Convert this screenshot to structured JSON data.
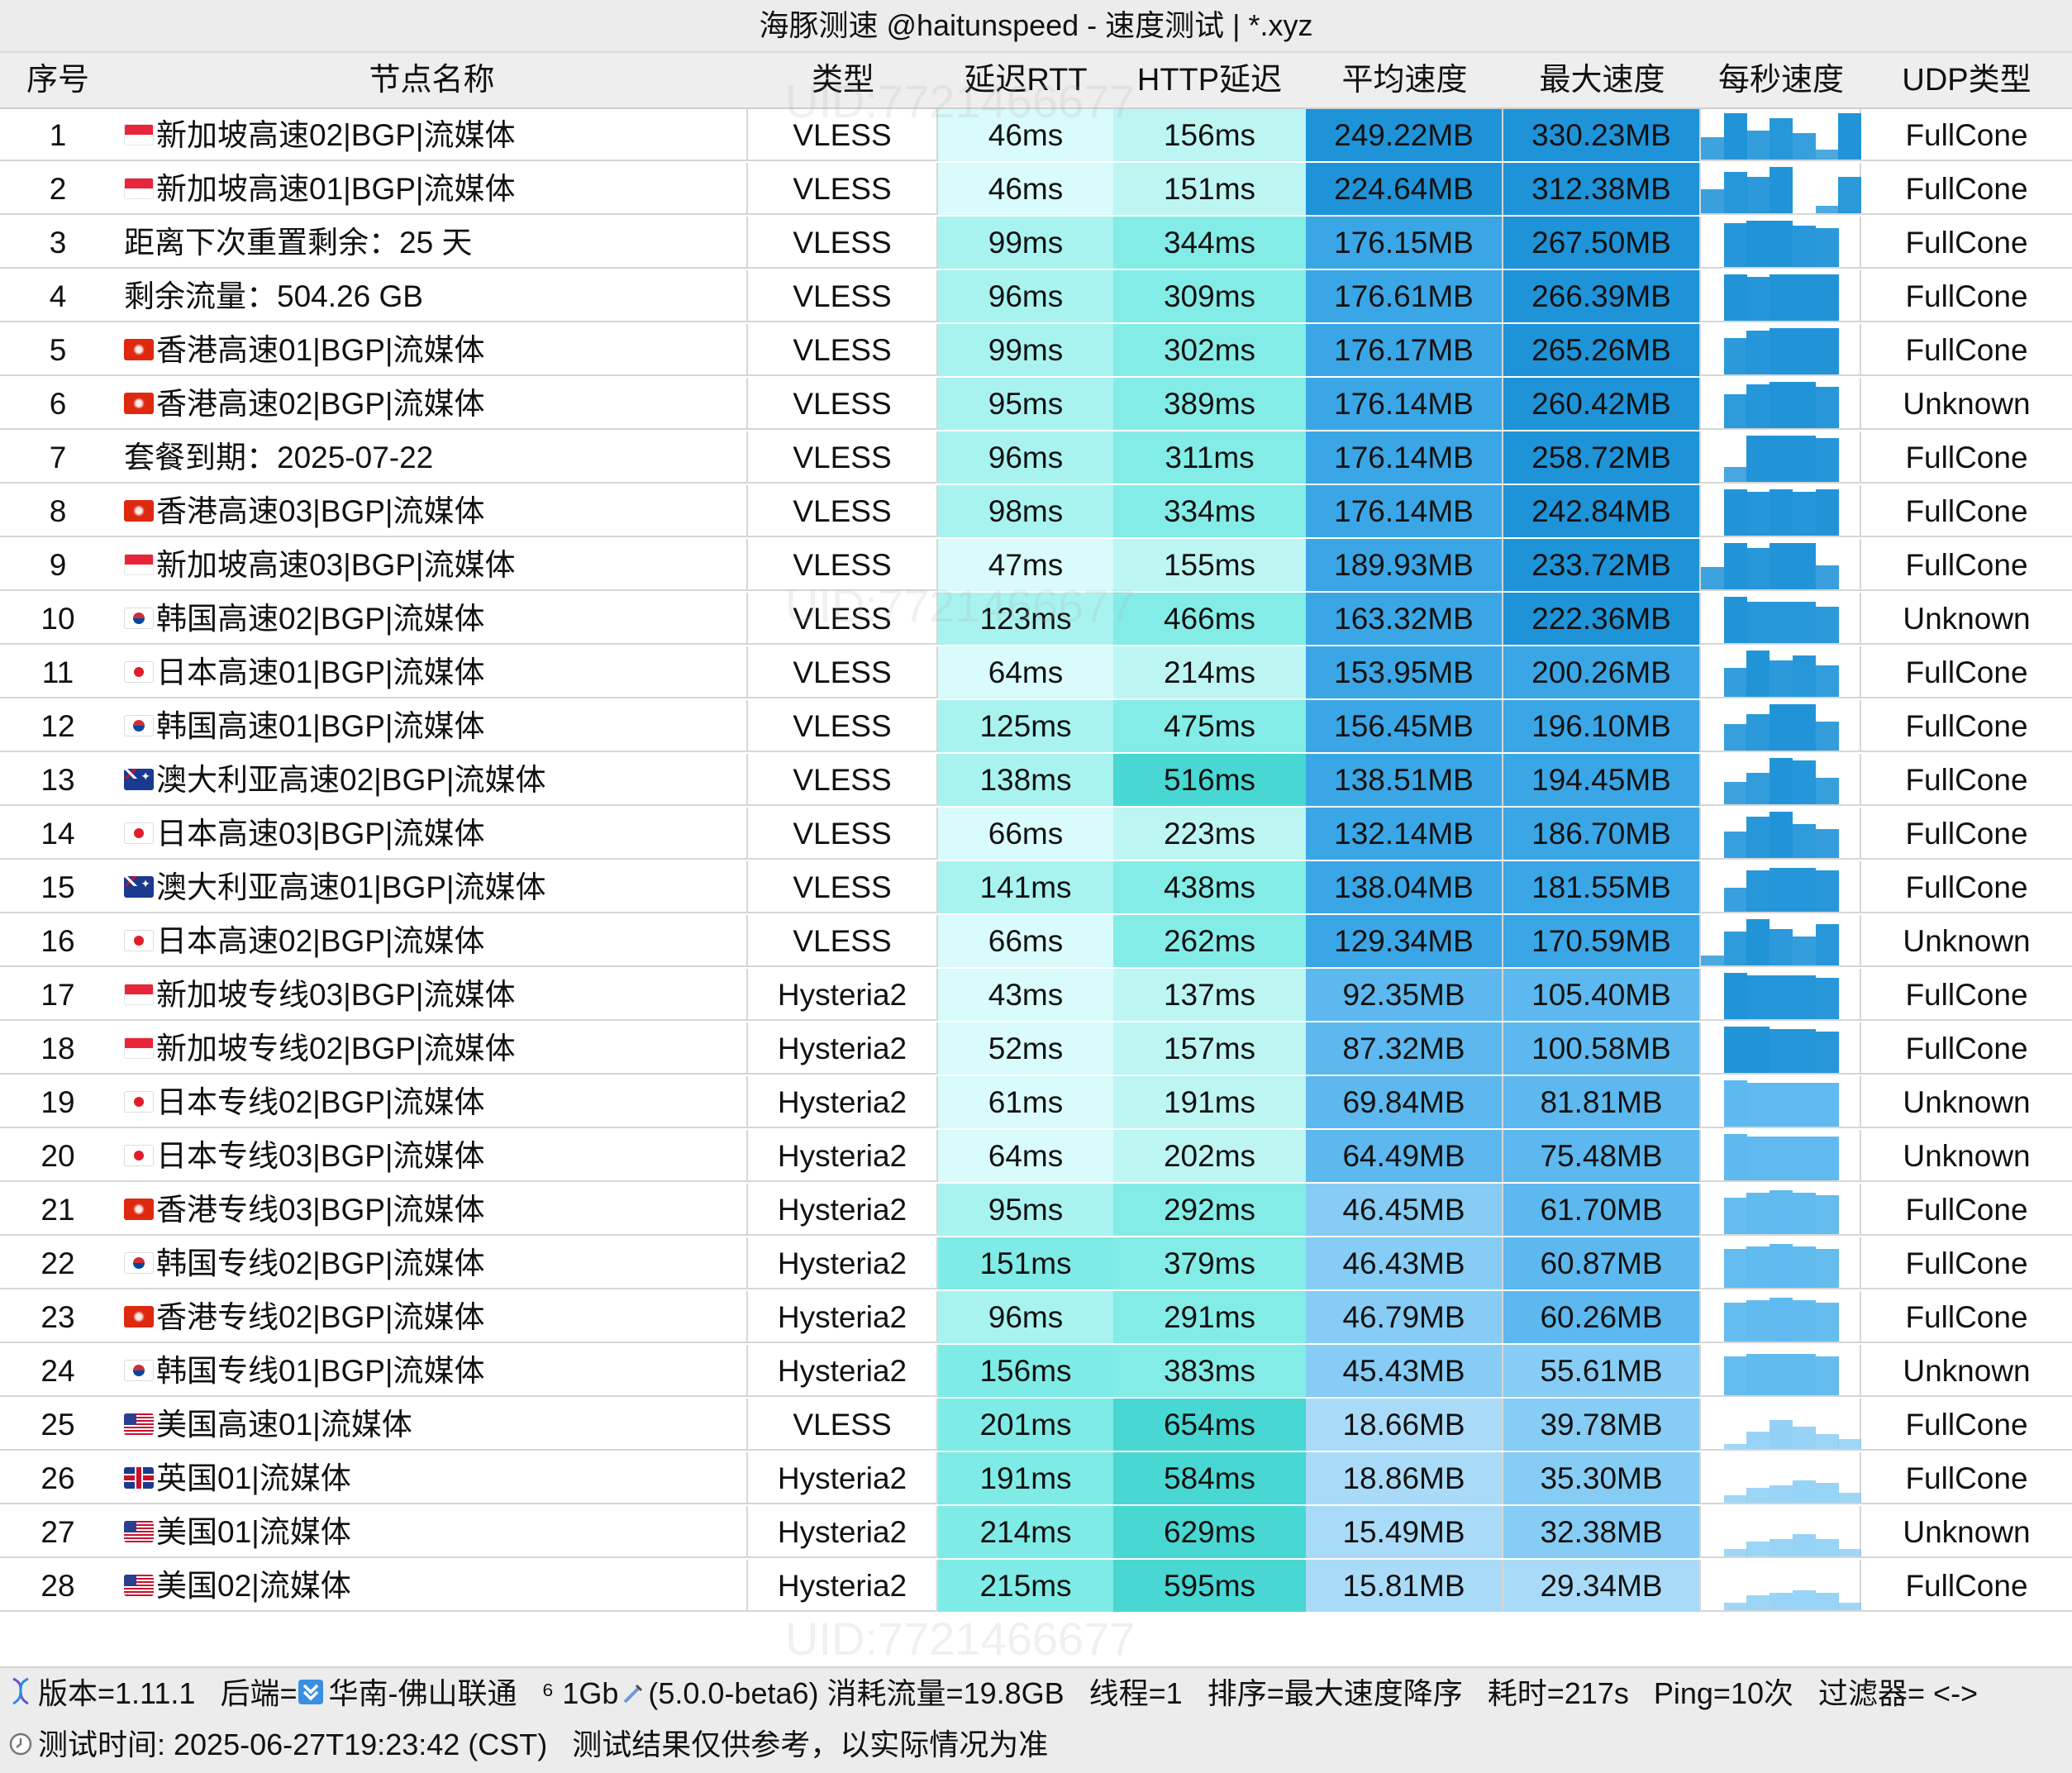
{
  "title": "海豚测速 @haitunspeed - 速度测试 | *.xyz",
  "headers": [
    "序号",
    "节点名称",
    "类型",
    "延迟RTT",
    "HTTP延迟",
    "平均速度",
    "最大速度",
    "每秒速度",
    "UDP类型"
  ],
  "rows": [
    {
      "idx": "1",
      "flag": "sg",
      "name": "新加坡高速02|BGP|流媒体",
      "type": "VLESS",
      "rtt": "46ms",
      "http": "156ms",
      "avg": "249.22MB",
      "max": "330.23MB",
      "udp": "FullCone",
      "spark": [
        0.45,
        0.95,
        0.6,
        0.85,
        0.55,
        0.2,
        0.95
      ]
    },
    {
      "idx": "2",
      "flag": "sg",
      "name": "新加坡高速01|BGP|流媒体",
      "type": "VLESS",
      "rtt": "46ms",
      "http": "151ms",
      "avg": "224.64MB",
      "max": "312.38MB",
      "udp": "FullCone",
      "spark": [
        0.5,
        0.85,
        0.75,
        0.95,
        0.0,
        0.15,
        0.75
      ]
    },
    {
      "idx": "3",
      "flag": "",
      "name": "距离下次重置剩余：25 天",
      "type": "VLESS",
      "rtt": "99ms",
      "http": "344ms",
      "avg": "176.15MB",
      "max": "267.50MB",
      "udp": "FullCone",
      "spark": [
        0.0,
        0.9,
        0.95,
        0.95,
        0.85,
        0.8,
        0.0
      ]
    },
    {
      "idx": "4",
      "flag": "",
      "name": "剩余流量：504.26 GB",
      "type": "VLESS",
      "rtt": "96ms",
      "http": "309ms",
      "avg": "176.61MB",
      "max": "266.39MB",
      "udp": "FullCone",
      "spark": [
        0.0,
        0.95,
        0.9,
        0.95,
        0.95,
        0.95,
        0.0
      ]
    },
    {
      "idx": "5",
      "flag": "hk",
      "name": "香港高速01|BGP|流媒体",
      "type": "VLESS",
      "rtt": "99ms",
      "http": "302ms",
      "avg": "176.17MB",
      "max": "265.26MB",
      "udp": "FullCone",
      "spark": [
        0.0,
        0.75,
        0.9,
        0.95,
        0.95,
        0.95,
        0.0
      ]
    },
    {
      "idx": "6",
      "flag": "hk",
      "name": "香港高速02|BGP|流媒体",
      "type": "VLESS",
      "rtt": "95ms",
      "http": "389ms",
      "avg": "176.14MB",
      "max": "260.42MB",
      "udp": "Unknown",
      "spark": [
        0.0,
        0.7,
        0.9,
        0.95,
        0.95,
        0.85,
        0.0
      ]
    },
    {
      "idx": "7",
      "flag": "",
      "name": "套餐到期：2025-07-22",
      "type": "VLESS",
      "rtt": "96ms",
      "http": "311ms",
      "avg": "176.14MB",
      "max": "258.72MB",
      "udp": "FullCone",
      "spark": [
        0.0,
        0.3,
        0.95,
        0.95,
        0.95,
        0.9,
        0.0
      ]
    },
    {
      "idx": "8",
      "flag": "hk",
      "name": "香港高速03|BGP|流媒体",
      "type": "VLESS",
      "rtt": "98ms",
      "http": "334ms",
      "avg": "176.14MB",
      "max": "242.84MB",
      "udp": "FullCone",
      "spark": [
        0.0,
        0.95,
        0.9,
        0.95,
        0.9,
        0.95,
        0.0
      ]
    },
    {
      "idx": "9",
      "flag": "sg",
      "name": "新加坡高速03|BGP|流媒体",
      "type": "VLESS",
      "rtt": "47ms",
      "http": "155ms",
      "avg": "189.93MB",
      "max": "233.72MB",
      "udp": "FullCone",
      "spark": [
        0.45,
        0.95,
        0.85,
        0.95,
        0.95,
        0.5,
        0.0
      ]
    },
    {
      "idx": "10",
      "flag": "kr",
      "name": "韩国高速02|BGP|流媒体",
      "type": "VLESS",
      "rtt": "123ms",
      "http": "466ms",
      "avg": "163.32MB",
      "max": "222.36MB",
      "udp": "Unknown",
      "spark": [
        0.0,
        0.95,
        0.85,
        0.85,
        0.85,
        0.75,
        0.0
      ]
    },
    {
      "idx": "11",
      "flag": "jp",
      "name": "日本高速01|BGP|流媒体",
      "type": "VLESS",
      "rtt": "64ms",
      "http": "214ms",
      "avg": "153.95MB",
      "max": "200.26MB",
      "udp": "FullCone",
      "spark": [
        0.0,
        0.6,
        0.95,
        0.75,
        0.85,
        0.65,
        0.0
      ]
    },
    {
      "idx": "12",
      "flag": "kr",
      "name": "韩国高速01|BGP|流媒体",
      "type": "VLESS",
      "rtt": "125ms",
      "http": "475ms",
      "avg": "156.45MB",
      "max": "196.10MB",
      "udp": "FullCone",
      "spark": [
        0.0,
        0.55,
        0.75,
        0.95,
        0.95,
        0.6,
        0.0
      ]
    },
    {
      "idx": "13",
      "flag": "au",
      "name": "澳大利亚高速02|BGP|流媒体",
      "type": "VLESS",
      "rtt": "138ms",
      "http": "516ms",
      "avg": "138.51MB",
      "max": "194.45MB",
      "udp": "FullCone",
      "spark": [
        0.0,
        0.45,
        0.65,
        0.95,
        0.9,
        0.55,
        0.0
      ]
    },
    {
      "idx": "14",
      "flag": "jp",
      "name": "日本高速03|BGP|流媒体",
      "type": "VLESS",
      "rtt": "66ms",
      "http": "223ms",
      "avg": "132.14MB",
      "max": "186.70MB",
      "udp": "FullCone",
      "spark": [
        0.0,
        0.55,
        0.85,
        0.95,
        0.7,
        0.6,
        0.0
      ]
    },
    {
      "idx": "15",
      "flag": "au",
      "name": "澳大利亚高速01|BGP|流媒体",
      "type": "VLESS",
      "rtt": "141ms",
      "http": "438ms",
      "avg": "138.04MB",
      "max": "181.55MB",
      "udp": "FullCone",
      "spark": [
        0.0,
        0.5,
        0.85,
        0.9,
        0.9,
        0.85,
        0.0
      ]
    },
    {
      "idx": "16",
      "flag": "jp",
      "name": "日本高速02|BGP|流媒体",
      "type": "VLESS",
      "rtt": "66ms",
      "http": "262ms",
      "avg": "129.34MB",
      "max": "170.59MB",
      "udp": "Unknown",
      "spark": [
        0.2,
        0.7,
        0.95,
        0.75,
        0.6,
        0.85,
        0.0
      ]
    },
    {
      "idx": "17",
      "flag": "sg",
      "name": "新加坡专线03|BGP|流媒体",
      "type": "Hysteria2",
      "rtt": "43ms",
      "http": "137ms",
      "avg": "92.35MB",
      "max": "105.40MB",
      "udp": "FullCone",
      "spark": [
        0.0,
        0.95,
        0.9,
        0.9,
        0.9,
        0.85,
        0.0
      ]
    },
    {
      "idx": "18",
      "flag": "sg",
      "name": "新加坡专线02|BGP|流媒体",
      "type": "Hysteria2",
      "rtt": "52ms",
      "http": "157ms",
      "avg": "87.32MB",
      "max": "100.58MB",
      "udp": "FullCone",
      "spark": [
        0.0,
        0.95,
        0.95,
        0.9,
        0.9,
        0.85,
        0.0
      ]
    },
    {
      "idx": "19",
      "flag": "jp",
      "name": "日本专线02|BGP|流媒体",
      "type": "Hysteria2",
      "rtt": "61ms",
      "http": "191ms",
      "avg": "69.84MB",
      "max": "81.81MB",
      "udp": "Unknown",
      "spark": [
        0.0,
        0.95,
        0.9,
        0.9,
        0.9,
        0.9,
        0.0
      ]
    },
    {
      "idx": "20",
      "flag": "jp",
      "name": "日本专线03|BGP|流媒体",
      "type": "Hysteria2",
      "rtt": "64ms",
      "http": "202ms",
      "avg": "64.49MB",
      "max": "75.48MB",
      "udp": "Unknown",
      "spark": [
        0.0,
        0.95,
        0.9,
        0.9,
        0.9,
        0.9,
        0.0
      ]
    },
    {
      "idx": "21",
      "flag": "hk",
      "name": "香港专线03|BGP|流媒体",
      "type": "Hysteria2",
      "rtt": "95ms",
      "http": "292ms",
      "avg": "46.45MB",
      "max": "61.70MB",
      "udp": "FullCone",
      "spark": [
        0.0,
        0.75,
        0.85,
        0.9,
        0.85,
        0.8,
        0.0
      ]
    },
    {
      "idx": "22",
      "flag": "kr",
      "name": "韩国专线02|BGP|流媒体",
      "type": "Hysteria2",
      "rtt": "151ms",
      "http": "379ms",
      "avg": "46.43MB",
      "max": "60.87MB",
      "udp": "FullCone",
      "spark": [
        0.0,
        0.8,
        0.85,
        0.9,
        0.85,
        0.8,
        0.0
      ]
    },
    {
      "idx": "23",
      "flag": "hk",
      "name": "香港专线02|BGP|流媒体",
      "type": "Hysteria2",
      "rtt": "96ms",
      "http": "291ms",
      "avg": "46.79MB",
      "max": "60.26MB",
      "udp": "FullCone",
      "spark": [
        0.0,
        0.8,
        0.85,
        0.9,
        0.85,
        0.8,
        0.0
      ]
    },
    {
      "idx": "24",
      "flag": "kr",
      "name": "韩国专线01|BGP|流媒体",
      "type": "Hysteria2",
      "rtt": "156ms",
      "http": "383ms",
      "avg": "45.43MB",
      "max": "55.61MB",
      "udp": "Unknown",
      "spark": [
        0.0,
        0.8,
        0.85,
        0.85,
        0.85,
        0.8,
        0.0
      ]
    },
    {
      "idx": "25",
      "flag": "us",
      "name": "美国高速01|流媒体",
      "type": "VLESS",
      "rtt": "201ms",
      "http": "654ms",
      "avg": "18.66MB",
      "max": "39.78MB",
      "udp": "FullCone",
      "spark": [
        0.0,
        0.1,
        0.35,
        0.6,
        0.45,
        0.3,
        0.2
      ]
    },
    {
      "idx": "26",
      "flag": "gb",
      "name": "英国01|流媒体",
      "type": "Hysteria2",
      "rtt": "191ms",
      "http": "584ms",
      "avg": "18.86MB",
      "max": "35.30MB",
      "udp": "FullCone",
      "spark": [
        0.0,
        0.15,
        0.3,
        0.35,
        0.45,
        0.4,
        0.2
      ]
    },
    {
      "idx": "27",
      "flag": "us",
      "name": "美国01|流媒体",
      "type": "Hysteria2",
      "rtt": "214ms",
      "http": "629ms",
      "avg": "15.49MB",
      "max": "32.38MB",
      "udp": "Unknown",
      "spark": [
        0.0,
        0.15,
        0.3,
        0.35,
        0.45,
        0.35,
        0.15
      ]
    },
    {
      "idx": "28",
      "flag": "us",
      "name": "美国02|流媒体",
      "type": "Hysteria2",
      "rtt": "215ms",
      "http": "595ms",
      "avg": "15.81MB",
      "max": "29.34MB",
      "udp": "FullCone",
      "spark": [
        0.0,
        0.15,
        0.3,
        0.35,
        0.4,
        0.35,
        0.15
      ]
    }
  ],
  "footer": {
    "line1_version": "版本=1.11.1",
    "line1_backend_label": "后端=",
    "line1_backend_value": "华南-佛山联通",
    "line1_bandwidth": "⁶ 1Gb",
    "line1_core": "(5.0.0-beta6)",
    "line1_traffic": "消耗流量=19.8GB",
    "line1_threads": "线程=1",
    "line1_sort": "排序=最大速度降序",
    "line1_time": "耗时=217s",
    "line1_ping": "Ping=10次",
    "line1_filter": "过滤器= <->",
    "line2_time": "测试时间: 2025-06-27T19:23:42 (CST)",
    "line2_note": "测试结果仅供参考，以实际情况为准"
  },
  "watermark": "UID:7721466677",
  "colors": {
    "rtt_light": "#d9fbfb",
    "rtt_mid": "#a8f3f0",
    "rtt_dark": "#7eebe6",
    "http_light": "#bdf5f3",
    "http_mid": "#84ece7",
    "http_dark": "#48d7d3",
    "speed_very_high": "#1e93d8",
    "speed_high": "#3aa6e6",
    "speed_mid": "#5cb8ee",
    "speed_low": "#86ccf4",
    "speed_very_low": "#a9dbf8",
    "spark_dark": "#1e93d8",
    "spark_light": "#86ccf4"
  }
}
